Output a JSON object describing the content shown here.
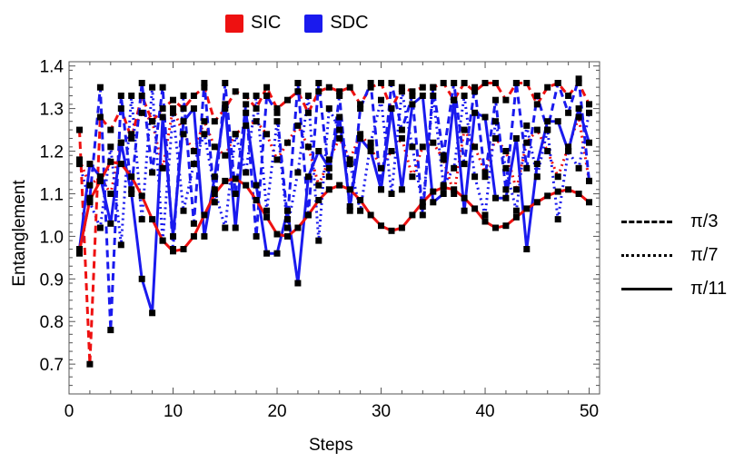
{
  "chart_data": {
    "type": "line",
    "xlabel": "Steps",
    "ylabel": "Entanglement",
    "xlim": [
      0,
      51
    ],
    "ylim": [
      0.63,
      1.41
    ],
    "xticks": [
      0,
      10,
      20,
      30,
      40,
      50
    ],
    "yticks": [
      0.7,
      0.8,
      0.9,
      1.0,
      1.1,
      1.2,
      1.3,
      1.4
    ],
    "ytick_labels": [
      "0.7",
      "0.8",
      "0.9",
      "1.0",
      "1.1",
      "1.2",
      "1.3",
      "1.4"
    ],
    "legend_protocol": [
      {
        "label": "SIC",
        "color": "#ee1111"
      },
      {
        "label": "SDC",
        "color": "#1a1aee"
      }
    ],
    "legend_angle": [
      {
        "label": "π/3",
        "style": "dashed"
      },
      {
        "label": "π/7",
        "style": "dotted"
      },
      {
        "label": "π/11",
        "style": "solid"
      }
    ],
    "series": [
      {
        "protocol": "SIC",
        "angle": "π/3",
        "color": "#ee1111",
        "style": "dashed",
        "values": [
          1.25,
          0.7,
          1.28,
          1.25,
          1.3,
          1.23,
          1.33,
          1.27,
          1.3,
          1.32,
          1.3,
          1.33,
          1.35,
          1.27,
          1.3,
          1.34,
          1.33,
          1.3,
          1.35,
          1.3,
          1.32,
          1.34,
          1.29,
          1.34,
          1.35,
          1.34,
          1.35,
          1.31,
          1.35,
          1.36,
          1.3,
          1.35,
          1.34,
          1.35,
          1.35,
          1.36,
          1.32,
          1.36,
          1.34,
          1.36,
          1.36,
          1.32,
          1.36,
          1.36,
          1.31,
          1.35,
          1.36,
          1.33,
          1.36,
          1.31
        ]
      },
      {
        "protocol": "SIC",
        "angle": "π/7",
        "color": "#ee1111",
        "style": "dotted",
        "values": [
          1.18,
          1.12,
          1.14,
          1.1,
          1.22,
          1.24,
          1.29,
          1.27,
          1.16,
          1.3,
          1.24,
          1.2,
          1.27,
          1.21,
          1.19,
          1.24,
          1.26,
          1.27,
          1.24,
          1.18,
          1.22,
          1.26,
          1.21,
          1.12,
          1.18,
          1.23,
          1.18,
          1.24,
          1.21,
          1.16,
          1.2,
          1.23,
          1.14,
          1.21,
          1.22,
          1.18,
          1.1,
          1.25,
          1.21,
          1.15,
          1.23,
          1.2,
          1.11,
          1.22,
          1.25,
          1.2,
          1.14,
          1.21,
          1.28,
          1.13
        ]
      },
      {
        "protocol": "SIC",
        "angle": "π/11",
        "color": "#ee1111",
        "style": "solid",
        "values": [
          0.966,
          1.085,
          1.13,
          1.175,
          1.17,
          1.14,
          1.095,
          1.04,
          0.99,
          0.965,
          0.97,
          1.0,
          1.05,
          1.1,
          1.13,
          1.135,
          1.12,
          1.085,
          1.045,
          1.005,
          1.0,
          1.02,
          1.05,
          1.085,
          1.11,
          1.12,
          1.11,
          1.085,
          1.05,
          1.025,
          1.013,
          1.02,
          1.05,
          1.08,
          1.105,
          1.115,
          1.11,
          1.09,
          1.065,
          1.035,
          1.02,
          1.025,
          1.045,
          1.065,
          1.08,
          1.095,
          1.105,
          1.11,
          1.1,
          1.08
        ]
      },
      {
        "protocol": "SDC",
        "angle": "π/3",
        "color": "#1a1aee",
        "style": "dashed",
        "values": [
          0.96,
          1.09,
          1.35,
          0.78,
          1.33,
          1.11,
          1.36,
          1.15,
          1.35,
          0.97,
          1.33,
          1.03,
          1.36,
          1.08,
          1.36,
          1.1,
          1.31,
          1.0,
          1.33,
          1.29,
          1.04,
          1.36,
          1.05,
          1.36,
          1.14,
          1.33,
          1.06,
          1.3,
          1.36,
          1.11,
          1.36,
          1.25,
          1.33,
          1.05,
          1.35,
          1.19,
          1.36,
          1.17,
          1.35,
          1.14,
          1.32,
          1.11,
          1.36,
          1.16,
          1.33,
          1.25,
          1.36,
          1.29,
          1.37,
          1.13
        ]
      },
      {
        "protocol": "SDC",
        "angle": "π/7",
        "color": "#1a1aee",
        "style": "dotted",
        "values": [
          1.17,
          1.08,
          1.02,
          1.21,
          0.98,
          1.33,
          1.04,
          1.35,
          0.99,
          1.29,
          1.06,
          1.17,
          1.24,
          1.11,
          1.02,
          1.24,
          1.15,
          1.33,
          1.06,
          1.27,
          1.02,
          1.15,
          1.33,
          0.99,
          1.3,
          1.25,
          1.17,
          1.06,
          1.22,
          1.32,
          1.1,
          1.34,
          1.21,
          1.07,
          1.33,
          1.12,
          1.16,
          1.33,
          1.14,
          1.05,
          1.27,
          1.16,
          1.06,
          1.26,
          1.14,
          1.25,
          1.04,
          1.2,
          1.16,
          1.29
        ]
      },
      {
        "protocol": "SDC",
        "angle": "π/11",
        "color": "#1a1aee",
        "style": "solid",
        "values": [
          0.97,
          1.17,
          1.14,
          1.03,
          1.22,
          1.1,
          0.9,
          0.82,
          1.28,
          1.0,
          1.27,
          1.3,
          1.0,
          1.14,
          1.31,
          1.02,
          1.29,
          1.12,
          0.96,
          0.96,
          1.06,
          0.89,
          1.14,
          1.2,
          1.16,
          1.28,
          1.07,
          1.23,
          1.2,
          1.11,
          1.3,
          1.11,
          1.31,
          1.33,
          1.08,
          1.1,
          1.32,
          1.06,
          1.29,
          1.28,
          1.09,
          1.09,
          1.23,
          0.97,
          1.17,
          1.27,
          1.27,
          1.2,
          1.3,
          1.22
        ]
      }
    ]
  }
}
